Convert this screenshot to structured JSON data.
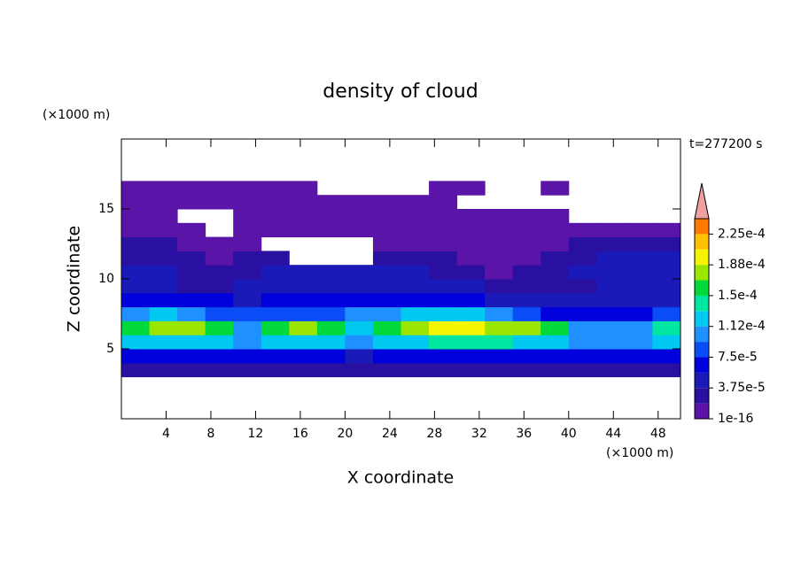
{
  "chart_data": {
    "type": "contour",
    "title": "density of cloud",
    "annotation": "t=277200 s",
    "xlabel": "X coordinate",
    "ylabel": "Z coordinate",
    "xunit": "(×1000 m)",
    "yunit": "(×1000 m)",
    "xlim": [
      0,
      50
    ],
    "ylim": [
      0,
      20
    ],
    "xticks": [
      4,
      8,
      12,
      16,
      20,
      24,
      28,
      32,
      36,
      40,
      44,
      48
    ],
    "yticks": [
      5,
      10,
      15
    ],
    "x": [
      1.25,
      3.75,
      6.25,
      8.75,
      11.25,
      13.75,
      16.25,
      18.75,
      21.25,
      23.75,
      26.25,
      28.75,
      31.25,
      33.75,
      36.25,
      38.75,
      41.25,
      43.75,
      46.25,
      48.75
    ],
    "y": [
      3.5,
      4.5,
      5.5,
      6.5,
      7.5,
      8.5,
      9.5,
      10.5,
      11.5,
      12.5,
      13.5,
      14.5,
      15.5,
      16.5
    ],
    "z": [
      [
        2e-05,
        2e-05,
        2e-05,
        2e-05,
        2e-05,
        2e-05,
        2e-05,
        2e-05,
        2e-05,
        2e-05,
        2e-05,
        2e-05,
        2e-05,
        2e-05,
        2e-05,
        2e-05,
        2e-05,
        2e-05,
        2e-05,
        2e-05
      ],
      [
        6e-05,
        6e-05,
        6e-05,
        6e-05,
        6e-05,
        6e-05,
        6e-05,
        6e-05,
        4e-05,
        6e-05,
        6e-05,
        6e-05,
        6e-05,
        6e-05,
        6e-05,
        6e-05,
        6e-05,
        6e-05,
        6e-05,
        6e-05
      ],
      [
        0.00012,
        0.00013,
        0.00013,
        0.00012,
        0.0001,
        0.00013,
        0.00013,
        0.00012,
        0.00011,
        0.00012,
        0.00013,
        0.00014,
        0.00014,
        0.00014,
        0.00013,
        0.00012,
        0.00011,
        0.0001,
        0.00011,
        0.00012
      ],
      [
        0.00016,
        0.00017,
        0.00017,
        0.00015,
        0.00011,
        0.00016,
        0.00017,
        0.00016,
        0.00012,
        0.00015,
        0.00017,
        0.00019,
        0.00019,
        0.00018,
        0.00017,
        0.00015,
        0.00011,
        0.0001,
        0.00011,
        0.00014
      ],
      [
        0.00011,
        0.00012,
        0.00011,
        9e-05,
        8e-05,
        8e-05,
        8e-05,
        9e-05,
        0.0001,
        0.00011,
        0.00012,
        0.00013,
        0.00013,
        0.00011,
        8e-05,
        7e-05,
        6e-05,
        6e-05,
        6e-05,
        8e-05
      ],
      [
        6e-05,
        6e-05,
        6e-05,
        6e-05,
        5e-05,
        6e-05,
        7e-05,
        7e-05,
        7e-05,
        7e-05,
        7e-05,
        7e-05,
        6e-05,
        5e-05,
        5e-05,
        5e-05,
        4e-05,
        4e-05,
        5e-05,
        5e-05
      ],
      [
        4e-05,
        4e-05,
        3e-05,
        3e-05,
        4e-05,
        5e-05,
        5e-05,
        5e-05,
        5e-05,
        5e-05,
        5e-05,
        5e-05,
        4e-05,
        3e-05,
        3e-05,
        3e-05,
        3e-05,
        4e-05,
        4e-05,
        4e-05
      ],
      [
        4e-05,
        4e-05,
        2e-05,
        2e-05,
        3e-05,
        4e-05,
        4e-05,
        4e-05,
        4e-05,
        4e-05,
        4e-05,
        3e-05,
        2e-05,
        1e-05,
        2e-05,
        3e-05,
        4e-05,
        4e-05,
        5e-05,
        5e-05
      ],
      [
        3e-05,
        3e-05,
        2e-05,
        1e-05,
        2e-05,
        2e-05,
        0,
        0,
        0,
        3e-05,
        3e-05,
        2e-05,
        1e-05,
        1e-05,
        1e-05,
        2e-05,
        3e-05,
        4e-05,
        4e-05,
        4e-05
      ],
      [
        2e-05,
        2e-05,
        1e-05,
        1e-05,
        1e-05,
        0,
        0,
        0,
        0,
        1e-05,
        1e-05,
        1e-05,
        1e-05,
        1e-05,
        1e-05,
        1e-05,
        2e-05,
        2e-05,
        3e-05,
        3e-05
      ],
      [
        1e-05,
        1e-05,
        5e-06,
        0,
        5e-06,
        1e-05,
        5e-06,
        5e-06,
        5e-06,
        5e-06,
        5e-06,
        5e-06,
        5e-06,
        5e-06,
        5e-06,
        5e-06,
        1e-05,
        1e-05,
        1e-05,
        1e-05
      ],
      [
        5e-06,
        5e-06,
        0,
        0,
        5e-06,
        5e-06,
        5e-06,
        5e-06,
        5e-06,
        5e-06,
        5e-06,
        5e-06,
        5e-06,
        5e-06,
        5e-06,
        5e-06,
        0,
        0,
        0,
        0
      ],
      [
        5e-06,
        5e-06,
        5e-06,
        5e-06,
        5e-06,
        5e-06,
        5e-06,
        5e-06,
        5e-06,
        5e-06,
        5e-06,
        5e-06,
        0,
        0,
        0,
        0,
        0,
        0,
        0,
        0
      ],
      [
        1e-06,
        1e-06,
        1e-06,
        1e-06,
        1e-06,
        1e-06,
        1e-06,
        0,
        0,
        0,
        0,
        1e-06,
        1e-06,
        0,
        0,
        1e-06,
        0,
        0,
        0,
        0
      ]
    ],
    "levels": [
      1e-16,
      1.875e-05,
      3.75e-05,
      5.625e-05,
      7.5e-05,
      9.375e-05,
      0.0001125,
      0.00013125,
      0.00015,
      0.00016875,
      0.0001875,
      0.00020625,
      0.000225,
      0.00024375
    ],
    "colors": [
      "#5a14a8",
      "#2a10a0",
      "#1a1ab8",
      "#0000dc",
      "#0a4cf5",
      "#1e90ff",
      "#00c8f0",
      "#00e6a0",
      "#00d83c",
      "#9ae600",
      "#f5f500",
      "#ffc000",
      "#ff7800"
    ],
    "extend_color": "#f0a0a0",
    "cticks": [
      1e-16,
      {
        "value": 3.75e-05,
        "label": "3.75e-5"
      },
      {
        "value": 7.5e-05,
        "label": "7.5e-5"
      },
      {
        "value": 0.0001125,
        "label": "1.12e-4"
      },
      {
        "value": 0.00015,
        "label": "1.5e-4"
      },
      {
        "value": 0.0001875,
        "label": "1.88e-4"
      },
      {
        "value": 0.000225,
        "label": "2.25e-4"
      }
    ]
  }
}
